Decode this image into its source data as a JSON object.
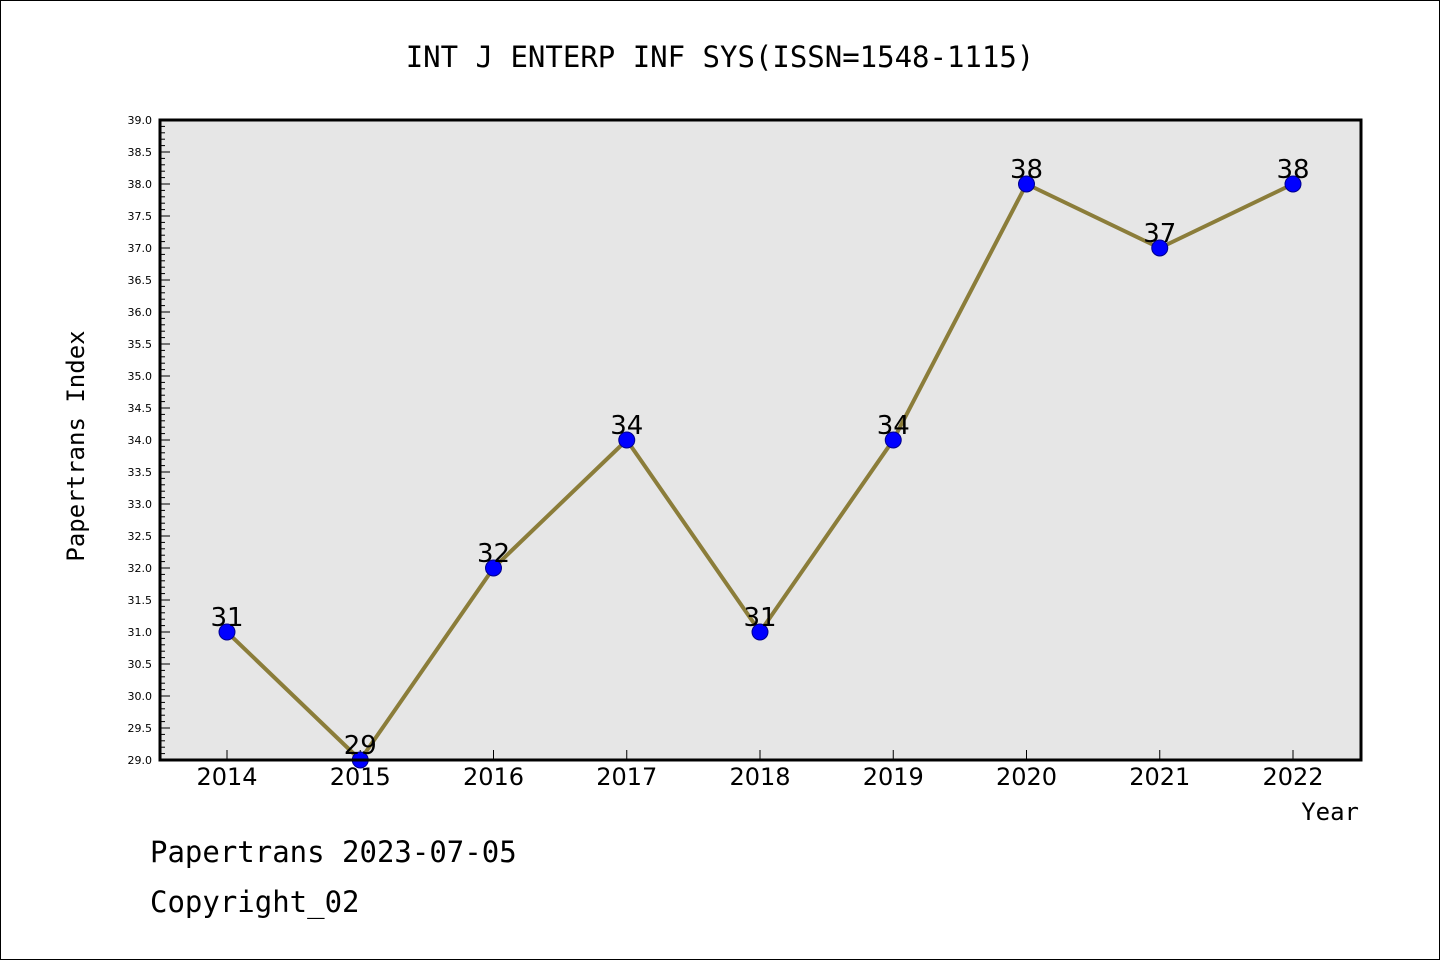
{
  "chart_data": {
    "type": "line",
    "title": "INT J ENTERP INF SYS(ISSN=1548-1115)",
    "xlabel": "Year",
    "ylabel": "Papertrans Index",
    "categories": [
      "2014",
      "2015",
      "2016",
      "2017",
      "2018",
      "2019",
      "2020",
      "2021",
      "2022"
    ],
    "values": [
      31,
      29,
      32,
      34,
      31,
      34,
      38,
      37,
      38
    ],
    "data_labels": [
      "31",
      "29",
      "32",
      "34",
      "31",
      "34",
      "38",
      "37",
      "38"
    ],
    "ylim": [
      29.0,
      39.0
    ],
    "ytick_step": 0.5,
    "yticks": [
      "29.0",
      "29.5",
      "30.0",
      "30.5",
      "31.0",
      "31.5",
      "32.0",
      "32.5",
      "33.0",
      "33.5",
      "34.0",
      "34.5",
      "35.0",
      "35.5",
      "36.0",
      "36.5",
      "37.0",
      "37.5",
      "38.0",
      "38.5",
      "39.0"
    ],
    "grid": false,
    "legend": "none",
    "colors": {
      "line": "#8B7D3A",
      "marker_fill": "#0000FF",
      "marker_edge": "#00008B",
      "plot_background": "#E6E6E6",
      "axes_border": "#000000"
    }
  },
  "footer": {
    "line1": "Papertrans 2023-07-05",
    "line2": "Copyright_02"
  }
}
